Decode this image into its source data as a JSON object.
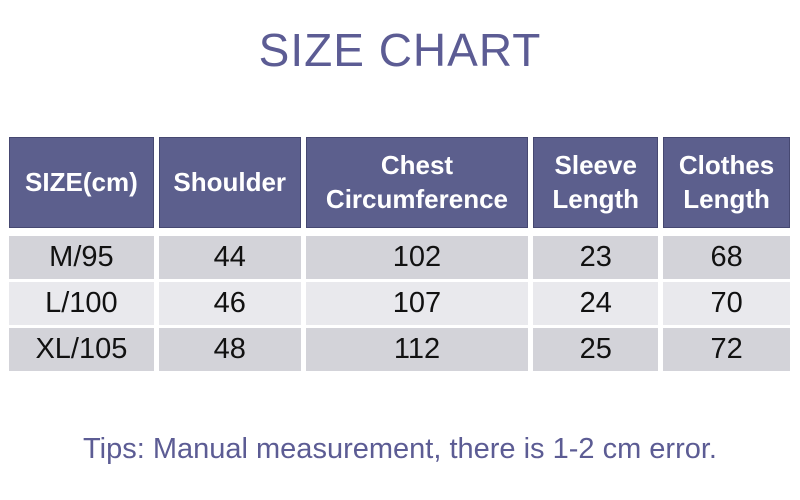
{
  "page": {
    "title": "SIZE CHART",
    "tips": "Tips: Manual measurement, there is 1-2 cm error."
  },
  "colors": {
    "accent_purple": "#5C5C94",
    "header_bg": "#5C5F8D",
    "row_odd_bg": "#D3D3D9",
    "row_even_bg": "#E9E9ED",
    "header_text": "#FFFFFF",
    "cell_text": "#111111",
    "background": "#FFFFFF"
  },
  "chart_data": {
    "type": "table",
    "title": "SIZE CHART",
    "unit": "cm",
    "columns": [
      "SIZE(cm)",
      "Shoulder",
      "Chest Circumference",
      "Sleeve Length",
      "Clothes Length"
    ],
    "rows": [
      [
        "M/95",
        "44",
        "102",
        "23",
        "68"
      ],
      [
        "L/100",
        "46",
        "107",
        "24",
        "70"
      ],
      [
        "XL/105",
        "48",
        "112",
        "25",
        "72"
      ]
    ],
    "note": "Tips: Manual measurement, there is 1-2 cm error."
  }
}
